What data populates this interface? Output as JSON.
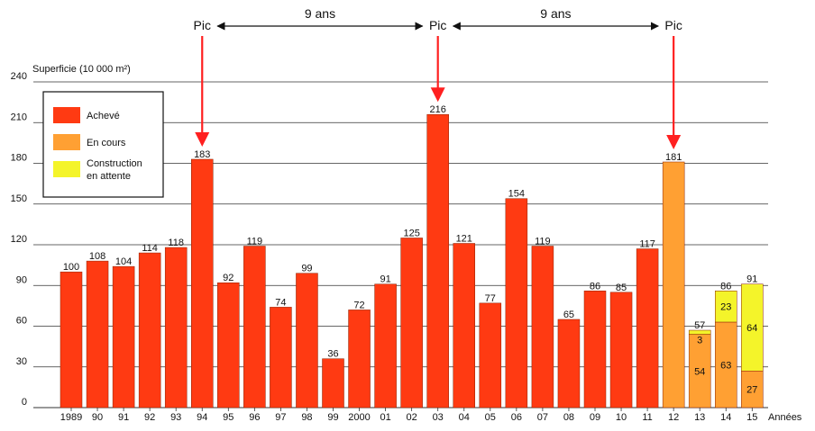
{
  "chart_data": {
    "type": "bar",
    "title": "",
    "ylabel": "Superficie (10 000 m²)",
    "xlabel": "Années",
    "ylim": [
      0,
      240
    ],
    "yticks": [
      0,
      30,
      60,
      90,
      120,
      150,
      180,
      210,
      240
    ],
    "grid": true,
    "categories": [
      "1989",
      "90",
      "91",
      "92",
      "93",
      "94",
      "95",
      "96",
      "97",
      "98",
      "99",
      "2000",
      "01",
      "02",
      "03",
      "04",
      "05",
      "06",
      "07",
      "08",
      "09",
      "10",
      "11",
      "12",
      "13",
      "14",
      "15"
    ],
    "series": [
      {
        "name": "Achevé",
        "color": "#ff3a12",
        "values": [
          100,
          108,
          104,
          114,
          118,
          183,
          92,
          119,
          74,
          99,
          36,
          72,
          91,
          125,
          216,
          121,
          77,
          154,
          119,
          65,
          86,
          85,
          117,
          0,
          0,
          0,
          0
        ]
      },
      {
        "name": "En cours",
        "color": "#ffa033",
        "values": [
          0,
          0,
          0,
          0,
          0,
          0,
          0,
          0,
          0,
          0,
          0,
          0,
          0,
          0,
          0,
          0,
          0,
          0,
          0,
          0,
          0,
          0,
          0,
          181,
          54,
          63,
          27
        ]
      },
      {
        "name": "Construction en attente",
        "color": "#f4f42a",
        "values": [
          0,
          0,
          0,
          0,
          0,
          0,
          0,
          0,
          0,
          0,
          0,
          0,
          0,
          0,
          0,
          0,
          0,
          0,
          0,
          0,
          0,
          0,
          0,
          0,
          3,
          23,
          64
        ]
      }
    ],
    "bar_labels": [
      {
        "category": "1989",
        "text": "100"
      },
      {
        "category": "90",
        "text": "108"
      },
      {
        "category": "91",
        "text": "104"
      },
      {
        "category": "92",
        "text": "114"
      },
      {
        "category": "93",
        "text": "118"
      },
      {
        "category": "94",
        "text": "183"
      },
      {
        "category": "95",
        "text": "92"
      },
      {
        "category": "96",
        "text": "119"
      },
      {
        "category": "97",
        "text": "74"
      },
      {
        "category": "98",
        "text": "99"
      },
      {
        "category": "99",
        "text": "36"
      },
      {
        "category": "2000",
        "text": "72"
      },
      {
        "category": "01",
        "text": "91"
      },
      {
        "category": "02",
        "text": "125"
      },
      {
        "category": "03",
        "text": "216"
      },
      {
        "category": "04",
        "text": "121"
      },
      {
        "category": "05",
        "text": "77"
      },
      {
        "category": "06",
        "text": "154"
      },
      {
        "category": "07",
        "text": "119"
      },
      {
        "category": "08",
        "text": "65"
      },
      {
        "category": "09",
        "text": "86"
      },
      {
        "category": "10",
        "text": "85"
      },
      {
        "category": "11",
        "text": "117"
      },
      {
        "category": "12",
        "text": "181"
      },
      {
        "category": "13",
        "text": "57"
      },
      {
        "category": "14",
        "text": "86"
      },
      {
        "category": "15",
        "text": "91"
      }
    ],
    "segment_labels": [
      {
        "category": "13",
        "series": "En cours",
        "text": "54"
      },
      {
        "category": "13",
        "series": "Construction en attente",
        "text": "3"
      },
      {
        "category": "14",
        "series": "En cours",
        "text": "63"
      },
      {
        "category": "14",
        "series": "Construction en attente",
        "text": "23"
      },
      {
        "category": "15",
        "series": "En cours",
        "text": "27"
      },
      {
        "category": "15",
        "series": "Construction en attente",
        "text": "64"
      }
    ],
    "legend_position": "top-left",
    "annotations": {
      "peaks": [
        {
          "category": "94",
          "label": "Pic"
        },
        {
          "category": "03",
          "label": "Pic"
        },
        {
          "category": "12",
          "label": "Pic"
        }
      ],
      "intervals": [
        {
          "from": "94",
          "to": "03",
          "label": "9 ans"
        },
        {
          "from": "03",
          "to": "12",
          "label": "9 ans"
        }
      ],
      "arrow_color": "#ff2020"
    }
  }
}
